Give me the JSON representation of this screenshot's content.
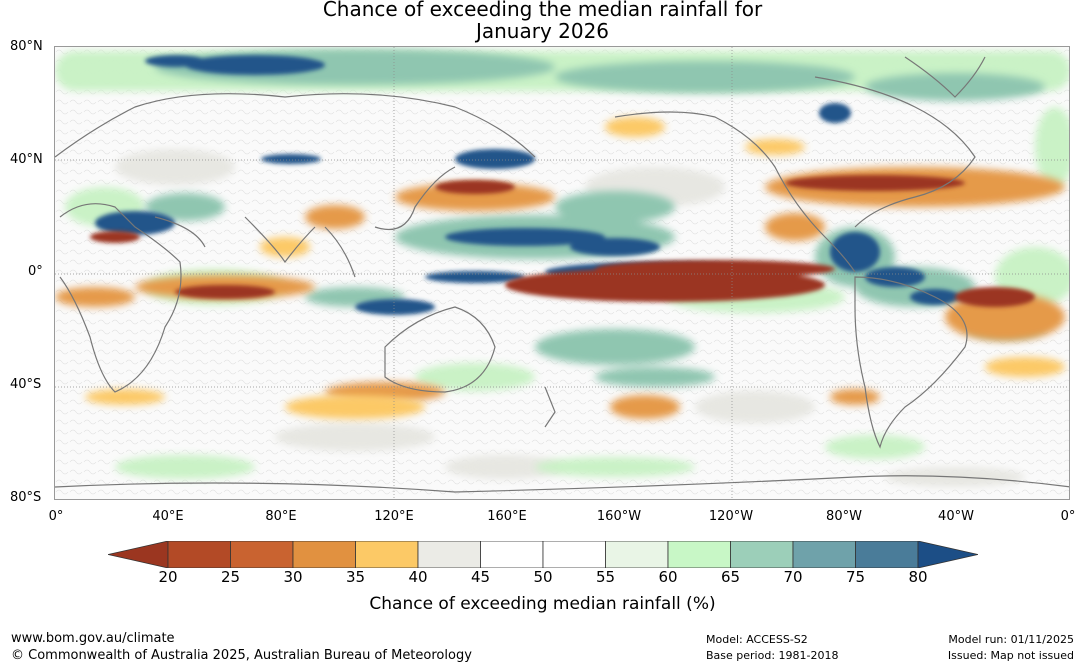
{
  "title": {
    "line1": "Chance of exceeding the median rainfall for",
    "line2": "January 2026"
  },
  "map": {
    "lat_labels": [
      "80°N",
      "40°N",
      "0°",
      "40°S",
      "80°S"
    ],
    "lon_labels": [
      "0°",
      "40°E",
      "80°E",
      "120°E",
      "160°E",
      "160°W",
      "120°W",
      "80°W",
      "40°W",
      "0°"
    ]
  },
  "colorbar": {
    "ticks": [
      "20",
      "25",
      "30",
      "35",
      "40",
      "45",
      "50",
      "55",
      "60",
      "65",
      "70",
      "75",
      "80"
    ],
    "colors": [
      "#9b3620",
      "#b34a26",
      "#c96330",
      "#e19140",
      "#fcc966",
      "#ebebe6",
      "#ffffff",
      "#ffffff",
      "#e9f5e6",
      "#c8f7c6",
      "#9ccfb9",
      "#6fa2aa",
      "#4a7c99",
      "#1c4e86"
    ],
    "label": "Chance of exceeding median rainfall (%)"
  },
  "footer": {
    "website": "www.bom.gov.au/climate",
    "copyright": "© Commonwealth of Australia 2025, Australian Bureau of Meteorology",
    "model": "Model: ACCESS-S2",
    "base_period": "Base period: 1981-2018",
    "model_run": "Model run: 01/11/2025",
    "issued": "Issued: Map not issued"
  }
}
